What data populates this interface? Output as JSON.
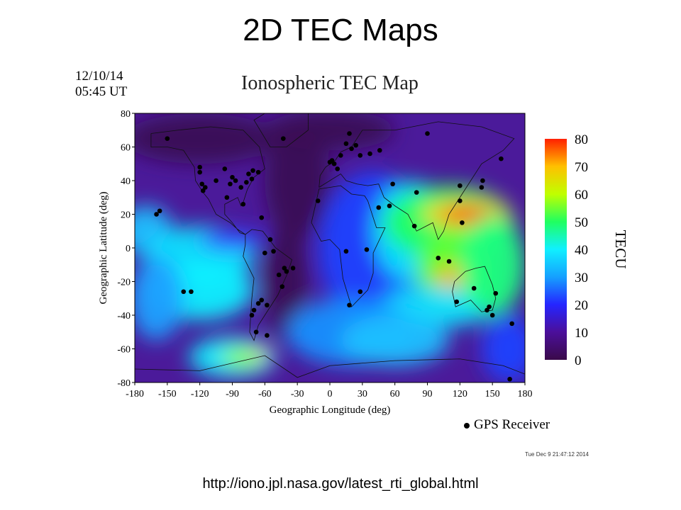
{
  "slide_title": "2D TEC Maps",
  "source_url": "http://iono.jpl.nasa.gov/latest_rti_global.html",
  "timestamp": "Tue Dec  9 21:47:12 2014",
  "chart_data": {
    "type": "heatmap",
    "title": "Ionospheric TEC Map",
    "date_line1": "12/10/14",
    "date_line2": "05:45 UT",
    "xlabel": "Geographic Longitude (deg)",
    "ylabel": "Geographic Latitude (deg)",
    "xlim": [
      -180,
      180
    ],
    "ylim": [
      -80,
      80
    ],
    "x_ticks": [
      -180,
      -150,
      -120,
      -90,
      -60,
      -30,
      0,
      30,
      60,
      90,
      120,
      150,
      180
    ],
    "y_ticks": [
      80,
      60,
      40,
      20,
      0,
      -20,
      -40,
      -60,
      -80
    ],
    "colorbar": {
      "label": "TECU",
      "range": [
        0,
        80
      ],
      "ticks": [
        80,
        70,
        60,
        50,
        40,
        30,
        20,
        10,
        0
      ],
      "colors": [
        "#3a0a4a",
        "#4b0f9a",
        "#2525ff",
        "#15a0ff",
        "#10f0ff",
        "#20ff60",
        "#c0ff00",
        "#ffc000",
        "#ff2000"
      ]
    },
    "legend": "GPS Receiver",
    "series": [
      {
        "name": "GPS Receiver",
        "points": [
          [
            -150,
            65
          ],
          [
            -120,
            48
          ],
          [
            -120,
            45
          ],
          [
            -118,
            38
          ],
          [
            -117,
            34
          ],
          [
            -115,
            36
          ],
          [
            -105,
            40
          ],
          [
            -97,
            47
          ],
          [
            -95,
            30
          ],
          [
            -92,
            38
          ],
          [
            -90,
            42
          ],
          [
            -87,
            40
          ],
          [
            -82,
            36
          ],
          [
            -80,
            26
          ],
          [
            -77,
            39
          ],
          [
            -75,
            44
          ],
          [
            -72,
            41
          ],
          [
            -71,
            46
          ],
          [
            -66,
            45
          ],
          [
            -63,
            18
          ],
          [
            -60,
            -3
          ],
          [
            -55,
            5
          ],
          [
            -52,
            -2
          ],
          [
            -47,
            -16
          ],
          [
            -44,
            -23
          ],
          [
            -40,
            -14
          ],
          [
            -58,
            -34
          ],
          [
            -63,
            -31
          ],
          [
            -66,
            -33
          ],
          [
            -70,
            -37
          ],
          [
            -72,
            -40
          ],
          [
            -68,
            -50
          ],
          [
            -58,
            -52
          ],
          [
            -43,
            65
          ],
          [
            -42,
            -12
          ],
          [
            -34,
            -12
          ],
          [
            -11,
            28
          ],
          [
            0,
            51
          ],
          [
            2,
            52
          ],
          [
            4,
            50
          ],
          [
            7,
            47
          ],
          [
            10,
            55
          ],
          [
            15,
            62
          ],
          [
            18,
            68
          ],
          [
            20,
            59
          ],
          [
            24,
            61
          ],
          [
            28,
            55
          ],
          [
            37,
            56
          ],
          [
            46,
            58
          ],
          [
            45,
            24
          ],
          [
            55,
            25
          ],
          [
            58,
            38
          ],
          [
            78,
            13
          ],
          [
            80,
            33
          ],
          [
            90,
            68
          ],
          [
            100,
            -6
          ],
          [
            110,
            -8
          ],
          [
            117,
            -32
          ],
          [
            120,
            28
          ],
          [
            120,
            37
          ],
          [
            122,
            15
          ],
          [
            133,
            -24
          ],
          [
            140,
            36
          ],
          [
            141,
            40
          ],
          [
            145,
            -37
          ],
          [
            147,
            -35
          ],
          [
            150,
            -40
          ],
          [
            153,
            -27
          ],
          [
            158,
            53
          ],
          [
            168,
            -45
          ],
          [
            166,
            -78
          ],
          [
            -160,
            20
          ],
          [
            -157,
            22
          ],
          [
            -128,
            -26
          ],
          [
            -135,
            -26
          ],
          [
            28,
            -26
          ],
          [
            18,
            -34
          ],
          [
            34,
            -1
          ],
          [
            15,
            -2
          ]
        ]
      }
    ]
  }
}
